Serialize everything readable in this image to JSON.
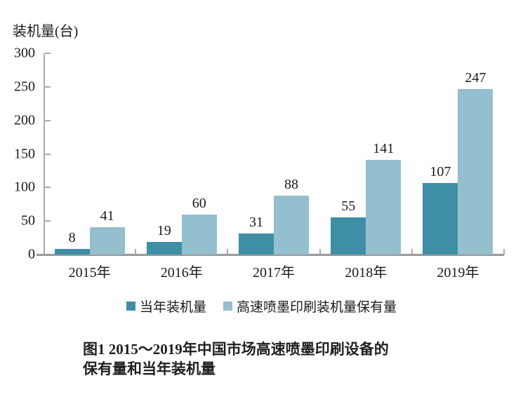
{
  "chart_data": {
    "type": "bar",
    "ylabel": "装机量(台)",
    "categories": [
      "2015年",
      "2016年",
      "2017年",
      "2018年",
      "2019年"
    ],
    "series": [
      {
        "name": "当年装机量",
        "color": "#3e8fa6",
        "values": [
          8,
          19,
          31,
          55,
          107
        ]
      },
      {
        "name": "高速喷墨印刷装机量保有量",
        "color": "#93bfce",
        "values": [
          41,
          60,
          88,
          141,
          247
        ]
      }
    ],
    "ylim": [
      0,
      300
    ],
    "yticks": [
      0,
      50,
      100,
      150,
      200,
      250,
      300
    ],
    "grid": false,
    "legend_position": "bottom",
    "bar_value_labels": true
  },
  "caption": {
    "line1": "图1 2015～2019年中国市场高速喷墨印刷设备的",
    "line2": "保有量和当年装机量"
  },
  "colors": {
    "axis": "#aaaaaa",
    "baseline": "#999999",
    "text": "#1a1a1a",
    "background": "#ffffff"
  }
}
